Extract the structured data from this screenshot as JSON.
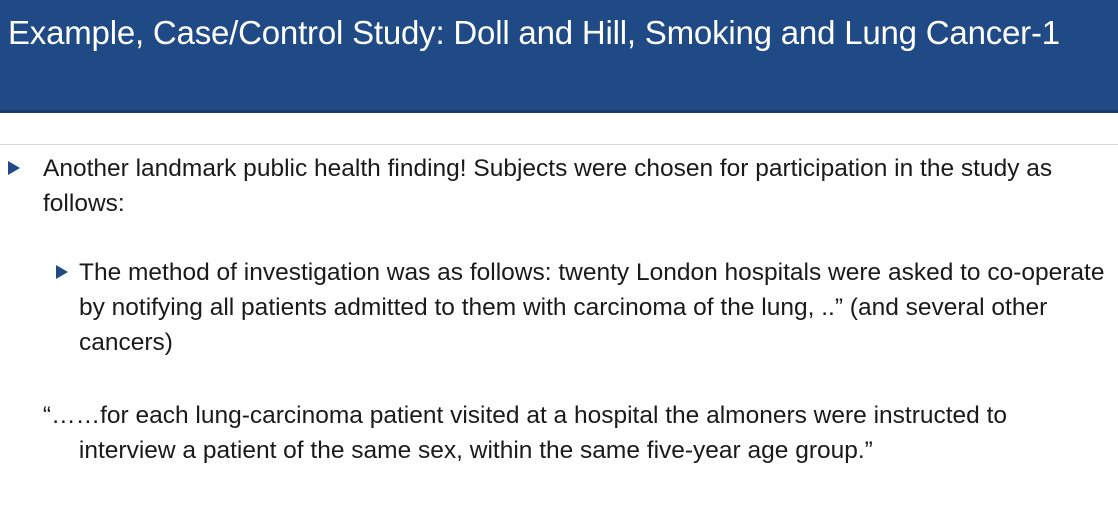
{
  "slide": {
    "title": "Example, Case/Control Study: Doll and Hill, Smoking and Lung Cancer-1",
    "bullets": [
      {
        "text": "Another landmark public health finding!  Subjects were chosen for participation in the study as follows:",
        "level": 1
      },
      {
        "text": "The method of investigation was as follows: twenty London hospitals were asked to co-operate by notifying all patients admitted to them with carcinoma of the lung, ..” (and several other cancers)",
        "level": 2
      }
    ],
    "quote": {
      "line1": "“……for each lung-carcinoma patient visited at a hospital the almoners were instructed to",
      "line2": "interview a patient of the same sex, within the same five-year age group.”"
    }
  },
  "colors": {
    "title_background": "#1f4a86",
    "title_text": "#ffffff",
    "bullet": "#1f4a86",
    "body_text": "#1a1a1a"
  },
  "icons": {
    "bullet": "triangle-right-icon"
  }
}
